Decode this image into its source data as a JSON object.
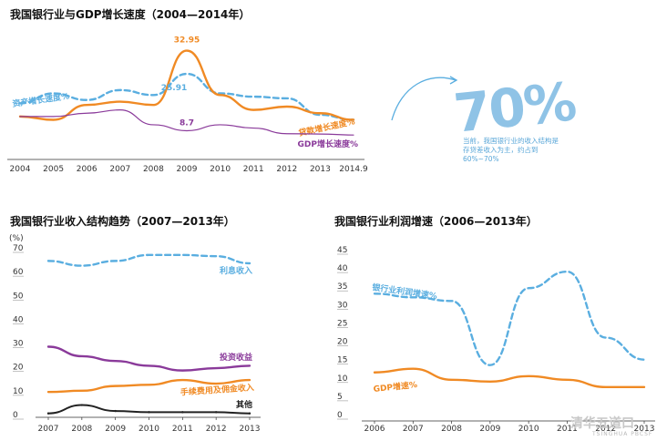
{
  "chart_data": [
    {
      "type": "line",
      "title": "我国银行业与GDP增长速度（2004—2014年）",
      "categories": [
        "2004",
        "2005",
        "2006",
        "2007",
        "2008",
        "2009",
        "2010",
        "2011",
        "2012",
        "2013",
        "2014.9"
      ],
      "ylim": [
        0,
        40
      ],
      "series": [
        {
          "name": "资产增长速度%",
          "color": "#5aaee0",
          "dashed": true,
          "values": [
            17,
            20,
            18,
            21,
            19.5,
            25.91,
            20,
            19,
            18.5,
            13.5,
            12
          ]
        },
        {
          "name": "贷款增长速度%",
          "color": "#f08a24",
          "dashed": false,
          "values": [
            13,
            12,
            16.5,
            17.5,
            16.5,
            32.95,
            19.5,
            15,
            16,
            14,
            12
          ]
        },
        {
          "name": "GDP增长速度%",
          "color": "#8a3a9a",
          "dashed": false,
          "values": [
            13,
            13,
            14,
            15,
            10.5,
            8.7,
            10.5,
            9.5,
            7.8,
            7.7,
            7.4
          ]
        }
      ],
      "annotations": [
        "32.95",
        "25.91",
        "8.7"
      ]
    },
    {
      "type": "line",
      "title": "我国银行业收入结构趋势（2007—2013年）",
      "ylabel": "(%)",
      "categories": [
        "2007",
        "2008",
        "2009",
        "2010",
        "2011",
        "2012",
        "2013"
      ],
      "yticks": [
        "0",
        "10",
        "20",
        "30",
        "40",
        "50",
        "60",
        "70"
      ],
      "ylim": [
        0,
        70
      ],
      "series": [
        {
          "name": "利息收入",
          "color": "#5aaee0",
          "dashed": true,
          "values": [
            64.5,
            62.5,
            64.5,
            67,
            67,
            66.5,
            63.5
          ]
        },
        {
          "name": "投资收益",
          "color": "#8a3a9a",
          "dashed": false,
          "values": [
            28.5,
            24.5,
            22.5,
            20.5,
            18.5,
            19.5,
            20.5
          ]
        },
        {
          "name": "手续费用及佣金收入",
          "color": "#f08a24",
          "dashed": false,
          "values": [
            9.5,
            10,
            12,
            12.5,
            14.5,
            13,
            14.5
          ]
        },
        {
          "name": "其他",
          "color": "#222222",
          "dashed": false,
          "values": [
            0.5,
            4,
            1.5,
            1,
            1,
            1,
            0.5
          ]
        }
      ]
    },
    {
      "type": "line",
      "title": "我国银行业利润增速（2006—2013年）",
      "categories": [
        "2006",
        "2007",
        "2008",
        "2009",
        "2010",
        "2011",
        "2012",
        "2013"
      ],
      "yticks": [
        "0",
        "5",
        "10",
        "15",
        "20",
        "25",
        "30",
        "35",
        "40",
        "45"
      ],
      "ylim": [
        0,
        45
      ],
      "series": [
        {
          "name": "银行业利润增速%",
          "color": "#5aaee0",
          "dashed": true,
          "values": [
            33,
            32,
            31,
            13.5,
            34.5,
            39,
            21,
            15
          ]
        },
        {
          "name": "GDP增速%",
          "color": "#f08a24",
          "dashed": false,
          "values": [
            11.5,
            12.5,
            9.5,
            9,
            10.5,
            9.5,
            7.5,
            7.5
          ]
        }
      ]
    }
  ],
  "side_note": {
    "big_number": "70%",
    "text": "当前，我国银行业的收入结构是存贷差收入为主，约占到60%~70%"
  },
  "watermark": {
    "name": "清华五道口",
    "sub": "TSINGHUA PBCSF"
  }
}
